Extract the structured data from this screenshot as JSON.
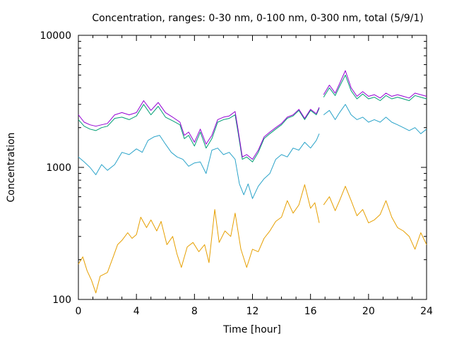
{
  "chart_data": {
    "type": "line",
    "title": "Concentration, ranges: 0-30 nm, 0-100 nm, 0-300 nm, total (5/9/1)",
    "xlabel": "Time [hour]",
    "ylabel": "Concentration",
    "xlim": [
      0,
      24
    ],
    "ylim": [
      100,
      10000
    ],
    "yscale": "log",
    "grid": false,
    "legend": "none",
    "x_ticks": [
      0,
      4,
      8,
      12,
      16,
      20,
      24
    ],
    "x_tick_labels": [
      "0",
      "4",
      "8",
      "12",
      "16",
      "20",
      "24"
    ],
    "y_ticks": [
      100,
      1000,
      10000
    ],
    "y_tick_labels": [
      "100",
      "1000",
      "10000"
    ],
    "series": [
      {
        "color": "#e69f00",
        "x": [
          0,
          0.3,
          0.6,
          0.9,
          1.2,
          1.5,
          2.0,
          2.4,
          2.7,
          3.0,
          3.4,
          3.7,
          4.0,
          4.3,
          4.7,
          5.0,
          5.4,
          5.7,
          6.1,
          6.5,
          6.8,
          7.1,
          7.5,
          7.9,
          8.3,
          8.7,
          9.0,
          9.4,
          9.7,
          10.1,
          10.5,
          10.8,
          11.2,
          11.6,
          12.0,
          12.4,
          12.8,
          13.2,
          13.6,
          14.0,
          14.4,
          14.8,
          15.2,
          15.6,
          16.0,
          16.3,
          16.6
        ],
        "y": [
          185,
          210,
          165,
          140,
          112,
          150,
          160,
          210,
          260,
          280,
          320,
          290,
          310,
          420,
          350,
          400,
          330,
          390,
          260,
          300,
          220,
          175,
          250,
          270,
          230,
          260,
          190,
          480,
          270,
          330,
          300,
          450,
          240,
          175,
          240,
          230,
          290,
          330,
          390,
          420,
          560,
          450,
          520,
          740,
          490,
          540,
          380
        ],
        "breaks_after_x": 16.6
      },
      {
        "color": "#e69f00",
        "x": [
          16.9,
          17.3,
          17.7,
          18.0,
          18.4,
          18.8,
          19.2,
          19.6,
          20.0,
          20.4,
          20.8,
          21.2,
          21.6,
          22.0,
          22.4,
          22.8,
          23.2,
          23.6,
          24.0
        ],
        "y": [
          520,
          600,
          470,
          560,
          720,
          560,
          430,
          480,
          380,
          400,
          440,
          560,
          420,
          350,
          330,
          300,
          240,
          320,
          260
        ]
      },
      {
        "color": "#2aa3c9",
        "x": [
          0,
          0.4,
          0.8,
          1.2,
          1.6,
          2.0,
          2.5,
          3.0,
          3.5,
          4.0,
          4.4,
          4.8,
          5.2,
          5.6,
          6.0,
          6.4,
          6.8,
          7.2,
          7.6,
          8.0,
          8.4,
          8.8,
          9.2,
          9.6,
          10.0,
          10.4,
          10.8,
          11.1,
          11.4,
          11.7,
          12.0,
          12.4,
          12.8,
          13.2,
          13.6,
          14.0,
          14.4,
          14.8,
          15.2,
          15.6,
          16.0,
          16.4,
          16.6
        ],
        "y": [
          1200,
          1100,
          1000,
          880,
          1050,
          950,
          1050,
          1300,
          1250,
          1380,
          1300,
          1600,
          1700,
          1750,
          1500,
          1300,
          1200,
          1150,
          1020,
          1080,
          1100,
          900,
          1350,
          1400,
          1250,
          1300,
          1150,
          750,
          620,
          750,
          580,
          720,
          820,
          900,
          1150,
          1250,
          1200,
          1400,
          1350,
          1550,
          1400,
          1600,
          1800
        ],
        "breaks_after_x": 16.6
      },
      {
        "color": "#2aa3c9",
        "x": [
          16.9,
          17.3,
          17.7,
          18.0,
          18.4,
          18.8,
          19.2,
          19.6,
          20.0,
          20.4,
          20.8,
          21.2,
          21.6,
          22.0,
          22.4,
          22.8,
          23.2,
          23.6,
          24.0
        ],
        "y": [
          2500,
          2700,
          2300,
          2600,
          3000,
          2500,
          2300,
          2400,
          2200,
          2300,
          2200,
          2400,
          2200,
          2100,
          2000,
          1900,
          2000,
          1800,
          1950
        ]
      },
      {
        "color": "#009e73",
        "x": [
          0,
          0.4,
          0.8,
          1.2,
          1.6,
          2.0,
          2.5,
          3.0,
          3.5,
          4.0,
          4.5,
          5.0,
          5.5,
          6.0,
          6.5,
          7.0,
          7.3,
          7.6,
          8.0,
          8.4,
          8.8,
          9.2,
          9.6,
          10.0,
          10.4,
          10.8,
          11.0,
          11.3,
          11.6,
          12.0,
          12.4,
          12.8,
          13.2,
          13.6,
          14.0,
          14.4,
          14.8,
          15.2,
          15.6,
          16.0,
          16.4,
          16.6
        ],
        "y": [
          2300,
          2050,
          1950,
          1900,
          2000,
          2050,
          2350,
          2400,
          2300,
          2450,
          3000,
          2500,
          2900,
          2400,
          2250,
          2100,
          1650,
          1750,
          1450,
          1850,
          1400,
          1650,
          2200,
          2300,
          2350,
          2500,
          1850,
          1150,
          1200,
          1100,
          1300,
          1650,
          1800,
          1950,
          2100,
          2350,
          2450,
          2700,
          2300,
          2700,
          2500,
          2800
        ],
        "breaks_after_x": 16.6
      },
      {
        "color": "#009e73",
        "x": [
          16.9,
          17.3,
          17.7,
          18.0,
          18.4,
          18.8,
          19.2,
          19.6,
          20.0,
          20.4,
          20.8,
          21.2,
          21.6,
          22.0,
          22.4,
          22.8,
          23.2,
          23.6,
          24.0
        ],
        "y": [
          3400,
          4000,
          3500,
          4100,
          5000,
          3800,
          3300,
          3600,
          3300,
          3400,
          3200,
          3500,
          3300,
          3400,
          3300,
          3200,
          3500,
          3400,
          3300
        ]
      },
      {
        "color": "#9400d3",
        "x": [
          0,
          0.4,
          0.8,
          1.2,
          1.6,
          2.0,
          2.5,
          3.0,
          3.5,
          4.0,
          4.5,
          5.0,
          5.5,
          6.0,
          6.5,
          7.0,
          7.3,
          7.6,
          8.0,
          8.4,
          8.8,
          9.2,
          9.6,
          10.0,
          10.4,
          10.8,
          11.0,
          11.3,
          11.6,
          12.0,
          12.4,
          12.8,
          13.2,
          13.6,
          14.0,
          14.4,
          14.8,
          15.2,
          15.6,
          16.0,
          16.4,
          16.6
        ],
        "y": [
          2500,
          2200,
          2100,
          2050,
          2100,
          2150,
          2500,
          2600,
          2500,
          2600,
          3200,
          2700,
          3100,
          2600,
          2400,
          2200,
          1750,
          1850,
          1550,
          1950,
          1500,
          1750,
          2300,
          2400,
          2450,
          2650,
          1950,
          1200,
          1250,
          1150,
          1350,
          1700,
          1850,
          2000,
          2150,
          2400,
          2500,
          2750,
          2350,
          2750,
          2550,
          2850
        ],
        "breaks_after_x": 16.6
      },
      {
        "color": "#9400d3",
        "x": [
          16.9,
          17.3,
          17.7,
          18.0,
          18.4,
          18.8,
          19.2,
          19.6,
          20.0,
          20.4,
          20.8,
          21.2,
          21.6,
          22.0,
          22.4,
          22.8,
          23.2,
          23.6,
          24.0
        ],
        "y": [
          3550,
          4200,
          3650,
          4300,
          5400,
          4000,
          3450,
          3750,
          3450,
          3550,
          3350,
          3650,
          3450,
          3550,
          3450,
          3350,
          3650,
          3550,
          3450
        ]
      }
    ]
  }
}
